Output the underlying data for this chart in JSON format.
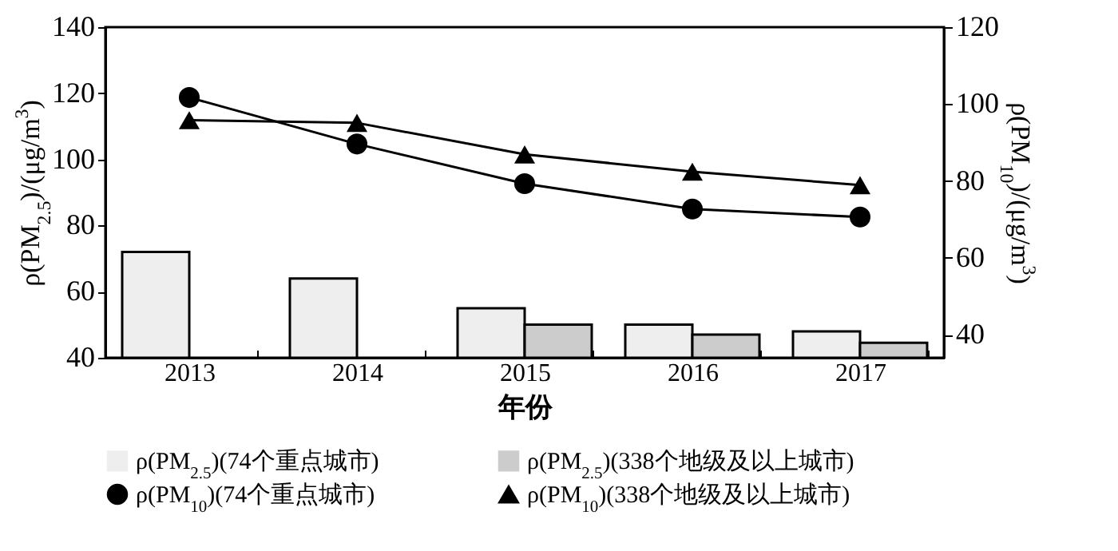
{
  "chart_data": {
    "type": "bar",
    "xlabel": "年份",
    "ylabel": "ρ(PM$_{2.5}$)/(μg/m$^{3}$)",
    "y2label": "ρ(PM$_{10}$)/(μg/m$^{3}$)",
    "categories": [
      "2013",
      "2014",
      "2015",
      "2016",
      "2017"
    ],
    "series": [
      {
        "name": "ρ(PM$_{2.5}$)(74个重点城市)",
        "type": "bar",
        "color": "#eeeeee",
        "values": [
          72,
          64,
          55,
          50,
          48
        ]
      },
      {
        "name": "ρ(PM$_{2.5}$)(338个地级及以上城市)",
        "type": "bar",
        "color": "#cccccc",
        "values": [
          null,
          null,
          50,
          47,
          44.5
        ]
      },
      {
        "name": "ρ(PM$_{10}$)(74个重点城市)",
        "type": "line",
        "axis": "y2",
        "marker": "circle",
        "color": "#000000",
        "values": [
          101.7,
          89.6,
          79.3,
          72.7,
          70.6
        ]
      },
      {
        "name": "ρ(PM$_{10}$)(338个地级及以上城市)",
        "type": "line",
        "axis": "y2",
        "marker": "triangle",
        "color": "#000000",
        "values": [
          95.8,
          95.1,
          86.9,
          82.4,
          78.9
        ]
      }
    ],
    "ylim": [
      40,
      140
    ],
    "yticks": [
      40,
      60,
      80,
      100,
      120,
      140
    ],
    "y2lim": [
      34,
      120
    ],
    "y2ticks": [
      40,
      60,
      80,
      100,
      120
    ],
    "grid": false,
    "legend": "bottom"
  }
}
